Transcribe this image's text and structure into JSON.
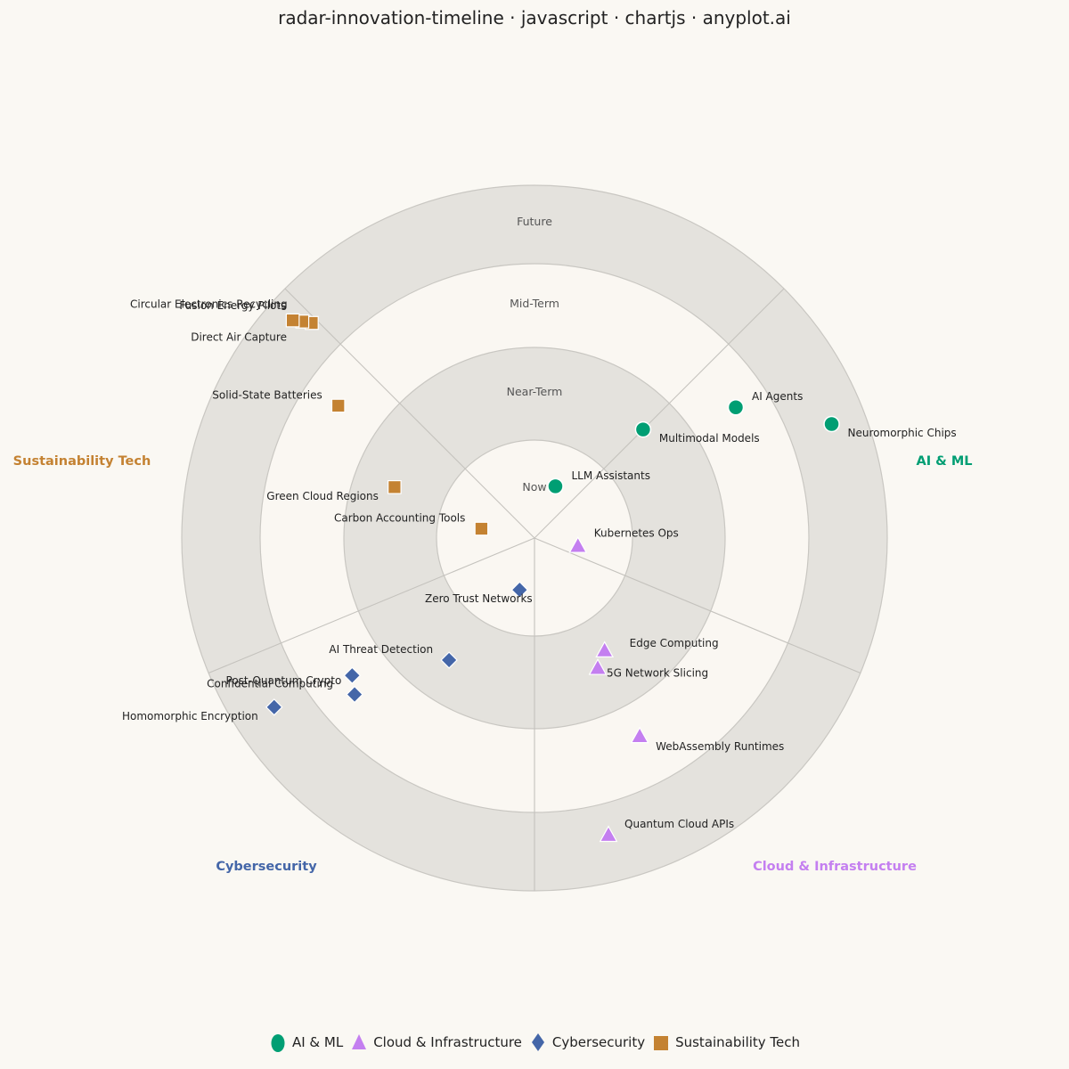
{
  "title": "radar-innovation-timeline · javascript · chartjs · anyplot.ai",
  "chart_data": {
    "type": "radar-timeline",
    "rings": [
      "Now",
      "Near-Term",
      "Mid-Term",
      "Future"
    ],
    "sectors": [
      {
        "name": "AI & ML",
        "color": "#009E73",
        "shape": "circle"
      },
      {
        "name": "Cloud & Infrastructure",
        "color": "#C47FF0",
        "shape": "triangle"
      },
      {
        "name": "Cybersecurity",
        "color": "#4466A8",
        "shape": "diamond"
      },
      {
        "name": "Sustainability Tech",
        "color": "#C48232",
        "shape": "square"
      }
    ],
    "items": [
      {
        "name": "LLM Assistants",
        "sector": "AI & ML",
        "radius": 0.57,
        "angle": 22
      },
      {
        "name": "Multimodal Models",
        "sector": "AI & ML",
        "radius": 1.6,
        "angle": 45
      },
      {
        "name": "AI Agents",
        "sector": "AI & ML",
        "radius": 2.59,
        "angle": 57
      },
      {
        "name": "Neuromorphic Chips",
        "sector": "AI & ML",
        "radius": 3.56,
        "angle": 69
      },
      {
        "name": "Kubernetes Ops",
        "sector": "Cloud & Infrastructure",
        "radius": 0.45,
        "angle": 100
      },
      {
        "name": "Edge Computing",
        "sector": "Cloud & Infrastructure",
        "radius": 1.37,
        "angle": 148
      },
      {
        "name": "5G Network Slicing",
        "sector": "Cloud & Infrastructure",
        "radius": 1.5,
        "angle": 154
      },
      {
        "name": "WebAssembly Runtimes",
        "sector": "Cloud & Infrastructure",
        "radius": 2.4,
        "angle": 152
      },
      {
        "name": "Quantum Cloud APIs",
        "sector": "Cloud & Infrastructure",
        "radius": 3.4,
        "angle": 166
      },
      {
        "name": "Zero Trust Networks",
        "sector": "Cybersecurity",
        "radius": 0.55,
        "angle": 196
      },
      {
        "name": "AI Threat Detection",
        "sector": "Cybersecurity",
        "radius": 1.55,
        "angle": 215
      },
      {
        "name": "Confidential Computing",
        "sector": "Cybersecurity",
        "radius": 2.57,
        "angle": 229
      },
      {
        "name": "Post-Quantum Crypto",
        "sector": "Cybersecurity",
        "radius": 2.45,
        "angle": 233
      },
      {
        "name": "Homomorphic Encryption",
        "sector": "Cybersecurity",
        "radius": 3.46,
        "angle": 237
      },
      {
        "name": "Carbon Accounting Tools",
        "sector": "Sustainability Tech",
        "radius": 0.55,
        "angle": 280
      },
      {
        "name": "Green Cloud Regions",
        "sector": "Sustainability Tech",
        "radius": 1.55,
        "angle": 290
      },
      {
        "name": "Solid-State Batteries",
        "sector": "Sustainability Tech",
        "radius": 2.55,
        "angle": 304
      },
      {
        "name": "Direct Air Capture",
        "sector": "Sustainability Tech",
        "radius": 3.45,
        "angle": 314
      },
      {
        "name": "Fusion Energy Pilots",
        "sector": "Sustainability Tech",
        "radius": 3.55,
        "angle": 313
      },
      {
        "name": "Circular Electronics Recycling",
        "sector": "Sustainability Tech",
        "radius": 3.65,
        "angle": 312
      }
    ],
    "legend_position": "bottom"
  }
}
